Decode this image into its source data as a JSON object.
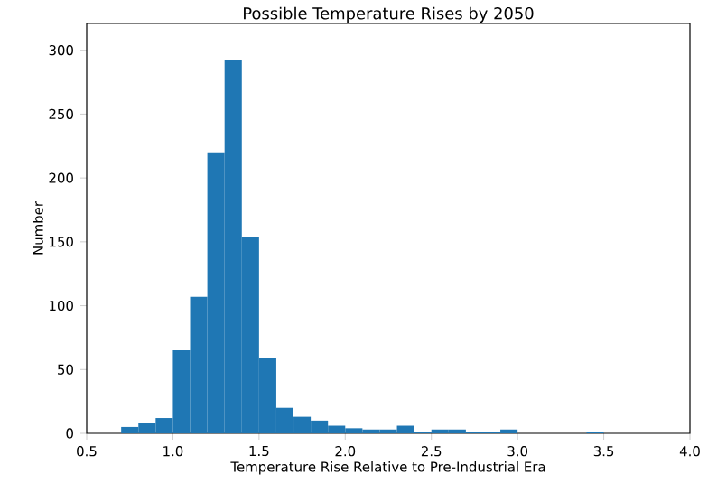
{
  "chart_data": {
    "type": "histogram",
    "title": "Possible Temperature Rises by 2050",
    "xlabel": "Temperature Rise Relative to Pre-Industrial Era",
    "ylabel": "Number",
    "bins": [
      0.7,
      0.8,
      0.9,
      1.0,
      1.1,
      1.2,
      1.3,
      1.4,
      1.5,
      1.6,
      1.7,
      1.8,
      1.9,
      2.0,
      2.1,
      2.2,
      2.3,
      2.4,
      2.5,
      2.6,
      2.7,
      2.8,
      2.9,
      3.0,
      3.1,
      3.2,
      3.3,
      3.4,
      3.5
    ],
    "values": [
      5,
      8,
      12,
      65,
      107,
      220,
      292,
      154,
      59,
      20,
      13,
      10,
      6,
      4,
      3,
      3,
      6,
      1,
      3,
      3,
      1,
      1,
      3,
      0,
      0,
      0,
      0,
      1
    ],
    "color": "#1f77b4",
    "xlim": [
      0.5,
      4.0
    ],
    "ylim": [
      0,
      321
    ],
    "xticks": [
      0.5,
      {
        "value": 1,
        "label": "1.0"
      },
      1.5,
      {
        "value": 2,
        "label": "2.0"
      },
      2.5,
      {
        "value": 3,
        "label": "3.0"
      },
      3.5,
      {
        "value": 4,
        "label": "4.0"
      }
    ],
    "yticks": [
      0,
      50,
      100,
      150,
      200,
      250,
      300
    ]
  }
}
